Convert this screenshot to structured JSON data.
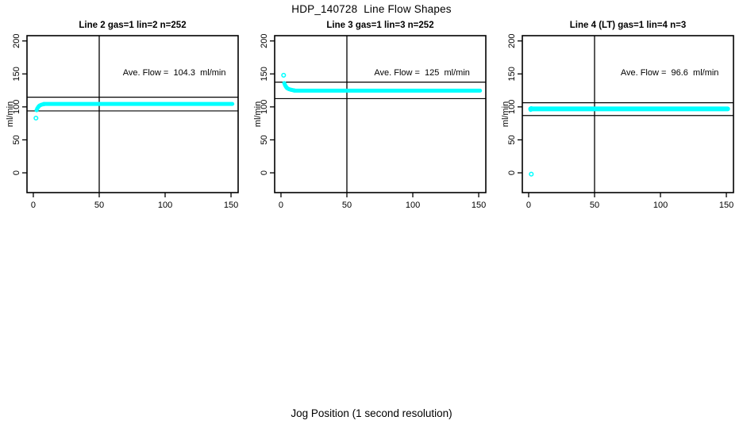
{
  "page": {
    "main_title": "HDP_140728  Line Flow Shapes",
    "x_axis_label": "Jog Position (1 second resolution)",
    "background_color": "#FFFFFF",
    "line_color": "#000000",
    "marker_color": "#00FFFF"
  },
  "chart_data": [
    {
      "type": "scatter",
      "title": "Line 2 gas=1 lin=2 n=252",
      "n": 252,
      "ave_flow": 104.3,
      "annotation": "Ave. Flow =  104.3  ml/min",
      "annotation_pos": {
        "x": 107,
        "y": 148
      },
      "ylabel": "ml/min",
      "x_ticks": [
        0,
        50,
        100,
        150
      ],
      "y_ticks": [
        0,
        50,
        100,
        150,
        200
      ],
      "xlim": [
        -4.8,
        155.4
      ],
      "ylim": [
        -30,
        208
      ],
      "vline_x": 50,
      "hlines": [
        114.7,
        93.9
      ],
      "open_points": [
        [
          2,
          83
        ]
      ],
      "rise_points": [
        [
          2.5,
          95
        ],
        [
          3,
          97.5
        ],
        [
          3.5,
          99
        ],
        [
          4,
          100.5
        ],
        [
          4.5,
          101.5
        ],
        [
          5,
          102.3
        ],
        [
          6,
          103.2
        ],
        [
          7,
          103.8
        ],
        [
          8,
          104.2
        ]
      ],
      "plateau": {
        "x_start": 8,
        "x_end": 151,
        "y": 104.5,
        "thickness_px": 5
      },
      "marker_color": "#00FFFF"
    },
    {
      "type": "scatter",
      "title": "Line 3 gas=1 lin=3 n=252",
      "n": 252,
      "ave_flow": 125,
      "annotation": "Ave. Flow =  125  ml/min",
      "annotation_pos": {
        "x": 107,
        "y": 148
      },
      "ylabel": "ml/min",
      "x_ticks": [
        0,
        50,
        100,
        150
      ],
      "y_ticks": [
        0,
        50,
        100,
        150,
        200
      ],
      "xlim": [
        -4.8,
        155.4
      ],
      "ylim": [
        -30,
        208
      ],
      "vline_x": 50,
      "hlines": [
        137.5,
        112.5
      ],
      "open_points": [
        [
          2,
          148
        ]
      ],
      "rise_points": [
        [
          2.5,
          136
        ],
        [
          3,
          133.5
        ],
        [
          3.5,
          131.5
        ],
        [
          4,
          130
        ],
        [
          4.5,
          128.8
        ],
        [
          5,
          128
        ],
        [
          6,
          127
        ],
        [
          7,
          126.3
        ],
        [
          8,
          125.8
        ],
        [
          9,
          125.4
        ],
        [
          10,
          125.1
        ]
      ],
      "plateau": {
        "x_start": 10,
        "x_end": 151,
        "y": 124.6,
        "thickness_px": 5
      },
      "marker_color": "#00FFFF"
    },
    {
      "type": "scatter",
      "title": "Line 4 (LT) gas=1 lin=4 n=3",
      "n": 3,
      "ave_flow": 96.6,
      "annotation": "Ave. Flow =  96.6  ml/min",
      "annotation_pos": {
        "x": 107,
        "y": 148
      },
      "ylabel": "ml/min",
      "x_ticks": [
        0,
        50,
        100,
        150
      ],
      "y_ticks": [
        0,
        50,
        100,
        150,
        200
      ],
      "xlim": [
        -4.8,
        155.4
      ],
      "ylim": [
        -30,
        208
      ],
      "vline_x": 50,
      "hlines": [
        106.3,
        86.9
      ],
      "open_points": [
        [
          2,
          -2
        ]
      ],
      "rise_points": [
        [
          1.5,
          95.5
        ],
        [
          2,
          98
        ],
        [
          2.5,
          96.5
        ]
      ],
      "plateau": {
        "x_start": 1.5,
        "x_end": 151,
        "y": 97,
        "thickness_px": 6
      },
      "marker_color": "#00FFFF"
    }
  ]
}
